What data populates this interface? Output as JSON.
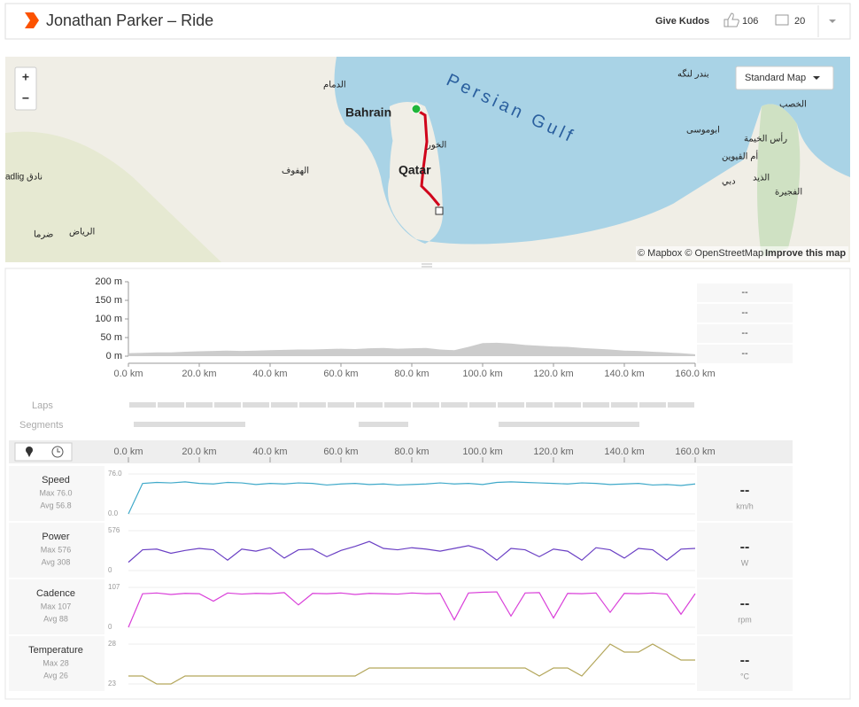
{
  "header": {
    "title": "Jonathan Parker – Ride",
    "give_kudos": "Give Kudos",
    "kudos_count": 106,
    "comments_count": 20
  },
  "map": {
    "zoom_in": "+",
    "zoom_out": "−",
    "style_button": "Standard Map",
    "labels": [
      "Persian Gulf",
      "Bahrain",
      "Qatar",
      "الدمام",
      "الهفوف",
      "الرياض",
      "الخور",
      "دبي",
      "رأس الخيمة",
      "الفجيرة",
      "الخصب",
      "بندر لنگه",
      "ابوموسى",
      "أم القيوين",
      "الذيد",
      "ضرما",
      "نادق",
      "adlig"
    ],
    "attribution": "© Mapbox © OpenStreetMap",
    "improve": "Improve this map"
  },
  "chart_data": [
    {
      "type": "area",
      "name": "elevation",
      "color": "#cccccc",
      "x": [
        0,
        4,
        8,
        12,
        16,
        20,
        24,
        28,
        32,
        36,
        40,
        44,
        48,
        52,
        56,
        60,
        64,
        68,
        72,
        76,
        80,
        84,
        88,
        92,
        96,
        100,
        104,
        108,
        112,
        116,
        120,
        124,
        128,
        132,
        136,
        140,
        144,
        148,
        152,
        156,
        160
      ],
      "values": [
        8,
        9,
        10,
        10,
        12,
        13,
        14,
        15,
        14,
        15,
        16,
        17,
        18,
        18,
        19,
        20,
        19,
        21,
        22,
        20,
        21,
        22,
        18,
        16,
        25,
        35,
        36,
        34,
        30,
        28,
        26,
        25,
        22,
        20,
        18,
        15,
        14,
        12,
        10,
        8,
        5
      ],
      "xlim": [
        0,
        160
      ],
      "ylim": [
        0,
        200
      ],
      "xticks": [
        {
          "value": 0,
          "label": "0.0 km"
        },
        {
          "value": 20,
          "label": "20.0 km"
        },
        {
          "value": 40,
          "label": "40.0 km"
        },
        {
          "value": 60,
          "label": "60.0 km"
        },
        {
          "value": 80,
          "label": "80.0 km"
        },
        {
          "value": 100,
          "label": "100.0 km"
        },
        {
          "value": 120,
          "label": "120.0 km"
        },
        {
          "value": 140,
          "label": "140.0 km"
        },
        {
          "value": 160,
          "label": "160.0 km"
        }
      ],
      "yticks": [
        {
          "value": 0,
          "label": "0 m"
        },
        {
          "value": 50,
          "label": "50 m"
        },
        {
          "value": 100,
          "label": "100 m"
        },
        {
          "value": 150,
          "label": "150 m"
        },
        {
          "value": 200,
          "label": "200 m"
        }
      ],
      "side_values": [
        "--",
        "--",
        "--",
        "--"
      ],
      "laps_label": "Laps",
      "segments_label": "Segments"
    },
    {
      "type": "line",
      "name": "Speed",
      "color": "#3fa9c9",
      "max_label": "Max 76.0",
      "avg_label": "Avg 56.8",
      "unit": "km/h",
      "current": "--",
      "x": [
        0,
        4,
        8,
        12,
        16,
        20,
        24,
        28,
        32,
        36,
        40,
        44,
        48,
        52,
        56,
        60,
        64,
        68,
        72,
        76,
        80,
        84,
        88,
        92,
        96,
        100,
        104,
        108,
        112,
        116,
        120,
        124,
        128,
        132,
        136,
        140,
        144,
        148,
        152,
        156,
        160
      ],
      "values": [
        0,
        58,
        60,
        59,
        61,
        58,
        57,
        60,
        59,
        56,
        58,
        57,
        59,
        58,
        55,
        57,
        58,
        56,
        57,
        55,
        56,
        57,
        59,
        57,
        58,
        56,
        60,
        61,
        60,
        59,
        58,
        57,
        59,
        58,
        56,
        57,
        58,
        55,
        56,
        54,
        57
      ],
      "xlim": [
        0,
        160
      ],
      "ylim": [
        0,
        76
      ],
      "yticks": [
        {
          "value": 0,
          "label": "0.0"
        },
        {
          "value": 76,
          "label": "76.0"
        }
      ]
    },
    {
      "type": "line",
      "name": "Power",
      "color": "#6a3fc4",
      "max_label": "Max 576",
      "avg_label": "Avg 308",
      "unit": "W",
      "current": "--",
      "x": [
        0,
        4,
        8,
        12,
        16,
        20,
        24,
        28,
        32,
        36,
        40,
        44,
        48,
        52,
        56,
        60,
        64,
        68,
        72,
        76,
        80,
        84,
        88,
        92,
        96,
        100,
        104,
        108,
        112,
        116,
        120,
        124,
        128,
        132,
        136,
        140,
        144,
        148,
        152,
        156,
        160
      ],
      "values": [
        120,
        300,
        310,
        250,
        290,
        320,
        300,
        150,
        310,
        280,
        330,
        180,
        300,
        310,
        200,
        290,
        350,
        420,
        320,
        300,
        330,
        310,
        280,
        320,
        360,
        300,
        150,
        320,
        300,
        200,
        310,
        280,
        150,
        330,
        300,
        180,
        320,
        300,
        150,
        310,
        320
      ],
      "xlim": [
        0,
        160
      ],
      "ylim": [
        0,
        576
      ],
      "yticks": [
        0,
        576
      ]
    },
    {
      "type": "line",
      "name": "Cadence",
      "color": "#d93fd9",
      "max_label": "Max 107",
      "avg_label": "Avg 88",
      "unit": "rpm",
      "current": "--",
      "x": [
        0,
        4,
        8,
        12,
        16,
        20,
        24,
        28,
        32,
        36,
        40,
        44,
        48,
        52,
        56,
        60,
        64,
        68,
        72,
        76,
        80,
        84,
        88,
        92,
        96,
        100,
        104,
        108,
        112,
        116,
        120,
        124,
        128,
        132,
        136,
        140,
        144,
        148,
        152,
        156,
        160
      ],
      "values": [
        0,
        90,
        92,
        88,
        91,
        90,
        70,
        92,
        89,
        91,
        90,
        93,
        60,
        91,
        90,
        92,
        88,
        91,
        90,
        89,
        92,
        90,
        91,
        20,
        92,
        94,
        95,
        30,
        92,
        93,
        25,
        91,
        90,
        92,
        40,
        91,
        90,
        92,
        89,
        35,
        90
      ],
      "xlim": [
        0,
        160
      ],
      "ylim": [
        0,
        107
      ],
      "yticks": [
        0,
        107
      ]
    },
    {
      "type": "line",
      "name": "Temperature",
      "color": "#b3a65a",
      "max_label": "Max 28",
      "avg_label": "Avg 26",
      "unit": "°C",
      "current": "--",
      "x": [
        0,
        4,
        8,
        12,
        16,
        20,
        24,
        28,
        32,
        36,
        40,
        44,
        48,
        52,
        56,
        60,
        64,
        68,
        72,
        76,
        80,
        84,
        88,
        92,
        96,
        100,
        104,
        108,
        112,
        116,
        120,
        124,
        128,
        132,
        136,
        140,
        144,
        148,
        152,
        156,
        160
      ],
      "values": [
        24,
        24,
        23,
        23,
        24,
        24,
        24,
        24,
        24,
        24,
        24,
        24,
        24,
        24,
        24,
        24,
        24,
        25,
        25,
        25,
        25,
        25,
        25,
        25,
        25,
        25,
        25,
        25,
        25,
        24,
        25,
        25,
        24,
        26,
        28,
        27,
        27,
        28,
        27,
        26,
        26
      ],
      "xlim": [
        0,
        160
      ],
      "ylim": [
        23,
        28
      ],
      "yticks": [
        23,
        28
      ]
    }
  ]
}
